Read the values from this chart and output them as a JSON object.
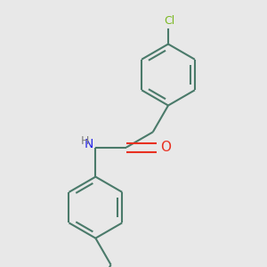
{
  "bg_color": "#e8e8e8",
  "bond_color": "#4a7a6a",
  "cl_color": "#7ab820",
  "o_color": "#e83020",
  "n_color": "#2828e8",
  "h_color": "#808080",
  "line_width": 1.5,
  "figsize": [
    3.0,
    3.0
  ],
  "dpi": 100,
  "xlim": [
    0.0,
    1.0
  ],
  "ylim": [
    0.0,
    1.0
  ]
}
